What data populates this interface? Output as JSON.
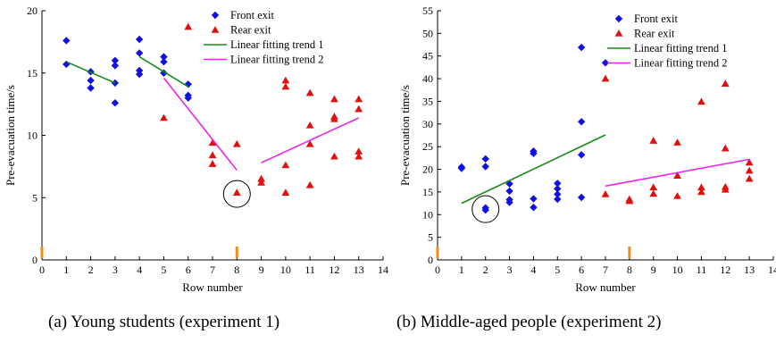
{
  "captions": [
    "(a) Young students (experiment 1)",
    "(b) Middle-aged people (experiment 2)"
  ],
  "colors": {
    "front": "#1010e0",
    "rear": "#e01010",
    "trend1": "#1a8a1a",
    "trend2": "#ee22ee",
    "marker": "#f08c1a",
    "axis": "#000000"
  },
  "chart_data": [
    {
      "type": "scatter",
      "title": "",
      "caption": "(a) Young students (experiment 1)",
      "xlabel": "Row number",
      "ylabel": "Pre-evacuation time/s",
      "xlim": [
        0,
        14
      ],
      "ylim": [
        0,
        20
      ],
      "xticks": [
        0,
        1,
        2,
        3,
        4,
        5,
        6,
        7,
        8,
        9,
        10,
        11,
        12,
        13,
        14
      ],
      "yticks": [
        0,
        5,
        10,
        15,
        20
      ],
      "legend": "top-right",
      "grid": false,
      "series": [
        {
          "name": "Front exit",
          "marker": "diamond",
          "points": [
            [
              1,
              17.6
            ],
            [
              1,
              15.7
            ],
            [
              2,
              15.1
            ],
            [
              2,
              14.4
            ],
            [
              2,
              13.8
            ],
            [
              3,
              16.0
            ],
            [
              3,
              15.6
            ],
            [
              3,
              14.2
            ],
            [
              3,
              12.6
            ],
            [
              4,
              17.7
            ],
            [
              4,
              16.6
            ],
            [
              4,
              15.2
            ],
            [
              4,
              14.9
            ],
            [
              5,
              16.3
            ],
            [
              5,
              15.9
            ],
            [
              5,
              15.0
            ],
            [
              6,
              14.1
            ],
            [
              6,
              13.2
            ],
            [
              6,
              13.0
            ]
          ]
        },
        {
          "name": "Rear exit",
          "marker": "triangle",
          "points": [
            [
              5,
              11.4
            ],
            [
              6,
              18.7
            ],
            [
              7,
              9.4
            ],
            [
              7,
              8.4
            ],
            [
              7,
              7.7
            ],
            [
              8,
              9.3
            ],
            [
              8,
              5.4
            ],
            [
              9,
              6.5
            ],
            [
              9,
              6.2
            ],
            [
              10,
              14.4
            ],
            [
              10,
              13.9
            ],
            [
              10,
              7.6
            ],
            [
              10,
              5.4
            ],
            [
              11,
              13.4
            ],
            [
              11,
              10.8
            ],
            [
              11,
              9.3
            ],
            [
              11,
              6.0
            ],
            [
              12,
              12.9
            ],
            [
              12,
              11.5
            ],
            [
              12,
              11.3
            ],
            [
              12,
              8.3
            ],
            [
              13,
              12.9
            ],
            [
              13,
              12.1
            ],
            [
              13,
              8.7
            ],
            [
              13,
              8.3
            ]
          ]
        },
        {
          "name": "Linear fitting trend 1",
          "kind": "line",
          "points": [
            [
              1,
              15.9
            ],
            [
              3,
              14.2
            ],
            [
              4,
              16.3
            ],
            [
              6,
              13.9
            ]
          ]
        },
        {
          "name": "Linear fitting trend 2",
          "kind": "line",
          "points": [
            [
              5,
              14.6
            ],
            [
              8,
              7.2
            ],
            [
              9,
              7.8
            ],
            [
              13,
              11.4
            ]
          ]
        }
      ],
      "annotations": [
        {
          "type": "circle",
          "at": [
            8,
            5.3
          ]
        }
      ],
      "orange_ticks": [
        0,
        8
      ]
    },
    {
      "type": "scatter",
      "title": "",
      "caption": "(b) Middle-aged people (experiment 2)",
      "xlabel": "Row number",
      "ylabel": "Pre-evacuation time/s",
      "xlim": [
        0,
        14
      ],
      "ylim": [
        0,
        55
      ],
      "xticks": [
        0,
        1,
        2,
        3,
        4,
        5,
        6,
        7,
        8,
        9,
        10,
        11,
        12,
        13,
        14
      ],
      "yticks": [
        0,
        5,
        10,
        15,
        20,
        25,
        30,
        35,
        40,
        45,
        50,
        55
      ],
      "legend": "top-right",
      "grid": false,
      "series": [
        {
          "name": "Front exit",
          "marker": "diamond",
          "points": [
            [
              1,
              20.5
            ],
            [
              1,
              20.2
            ],
            [
              2,
              22.3
            ],
            [
              2,
              20.6
            ],
            [
              2,
              11.5
            ],
            [
              2,
              11.0
            ],
            [
              3,
              16.8
            ],
            [
              3,
              15.2
            ],
            [
              3,
              13.3
            ],
            [
              3,
              12.7
            ],
            [
              4,
              24.0
            ],
            [
              4,
              23.5
            ],
            [
              4,
              13.5
            ],
            [
              4,
              11.6
            ],
            [
              5,
              16.9
            ],
            [
              5,
              15.7
            ],
            [
              5,
              14.5
            ],
            [
              5,
              13.4
            ],
            [
              6,
              46.9
            ],
            [
              6,
              30.5
            ],
            [
              6,
              23.2
            ],
            [
              6,
              13.8
            ],
            [
              7,
              43.5
            ]
          ]
        },
        {
          "name": "Rear exit",
          "marker": "triangle",
          "points": [
            [
              7,
              40.0
            ],
            [
              7,
              14.5
            ],
            [
              8,
              13.4
            ],
            [
              8,
              13.0
            ],
            [
              9,
              26.3
            ],
            [
              9,
              16.0
            ],
            [
              9,
              14.6
            ],
            [
              10,
              25.9
            ],
            [
              10,
              18.6
            ],
            [
              10,
              14.1
            ],
            [
              11,
              34.9
            ],
            [
              11,
              16.0
            ],
            [
              11,
              15.0
            ],
            [
              12,
              38.9
            ],
            [
              12,
              24.6
            ],
            [
              12,
              16.1
            ],
            [
              12,
              15.5
            ],
            [
              13,
              21.5
            ],
            [
              13,
              19.7
            ],
            [
              13,
              17.9
            ]
          ]
        },
        {
          "name": "Linear fitting trend 1",
          "kind": "line",
          "points": [
            [
              1,
              12.5
            ],
            [
              7,
              27.6
            ]
          ]
        },
        {
          "name": "Linear fitting trend 2",
          "kind": "line",
          "points": [
            [
              7,
              16.3
            ],
            [
              13,
              22.2
            ]
          ]
        }
      ],
      "annotations": [
        {
          "type": "circle",
          "at": [
            2,
            11.2
          ]
        }
      ],
      "orange_ticks": [
        0,
        8
      ]
    }
  ]
}
